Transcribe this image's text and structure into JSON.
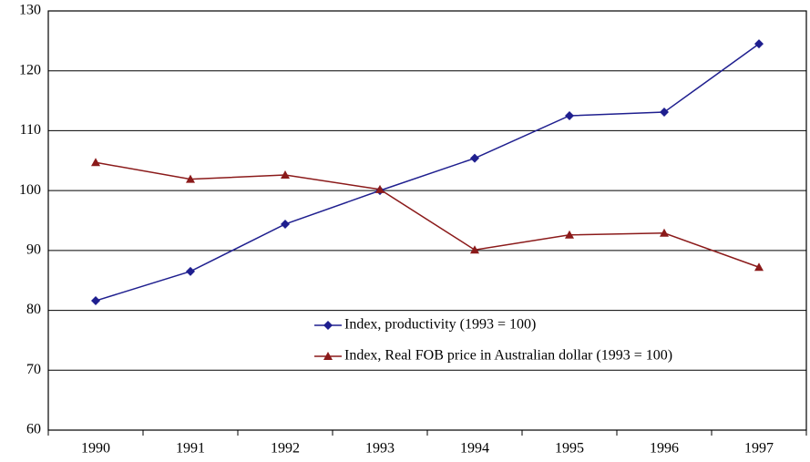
{
  "chart_data": {
    "type": "line",
    "categories": [
      "1990",
      "1991",
      "1992",
      "1993",
      "1994",
      "1995",
      "1996",
      "1997"
    ],
    "series": [
      {
        "name": "Index, productivity (1993 = 100)",
        "color": "#1f1f8f",
        "marker": "diamond",
        "values": [
          81.6,
          86.5,
          94.4,
          100,
          105.4,
          112.5,
          113.1,
          124.5
        ]
      },
      {
        "name": "Index, Real FOB price in Australian dollar (1993 = 100)",
        "color": "#8b1a1a",
        "marker": "triangle",
        "values": [
          104.7,
          101.9,
          102.6,
          100.2,
          90.1,
          92.6,
          92.9,
          87.2
        ]
      }
    ],
    "ylim": [
      60,
      130
    ],
    "yticks": [
      60,
      70,
      80,
      90,
      100,
      110,
      120,
      130
    ],
    "grid": true,
    "legend": "lower right"
  }
}
